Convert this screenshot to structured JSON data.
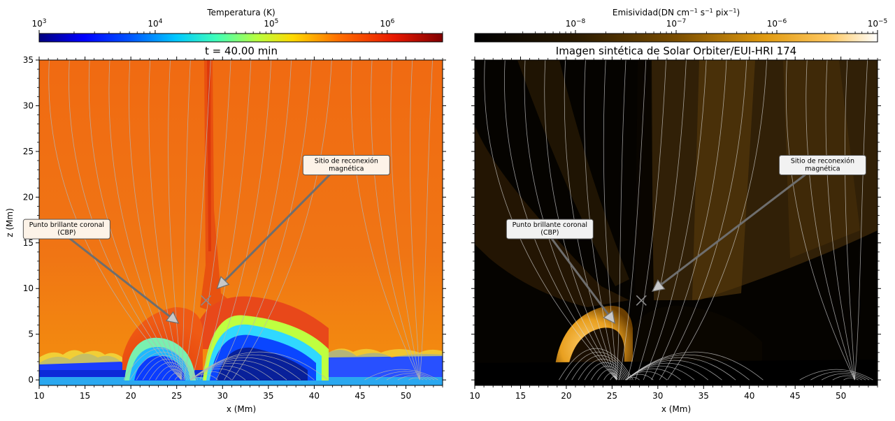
{
  "colors": {
    "arrow": "#6e6e6e",
    "field_line": "#b4b4b4",
    "x_marker": "#8a8a8a",
    "annot_box_fill": "#fdf3e8",
    "annot_box_stroke": "#555555"
  },
  "chart_data": [
    {
      "panel": "left",
      "type": "heatmap",
      "title": "t = 40.00 min",
      "xlabel": "x (Mm)",
      "ylabel": "z (Mm)",
      "xlim": [
        10,
        54
      ],
      "ylim": [
        -0.6,
        35
      ],
      "xticks": [
        10,
        15,
        20,
        25,
        30,
        35,
        40,
        45,
        50
      ],
      "yticks": [
        0,
        5,
        10,
        15,
        20,
        25,
        30,
        35
      ],
      "colorbar": {
        "label": "Temperatura (K)",
        "scale": "log",
        "colormap": "jet",
        "range": [
          1000,
          3000000
        ],
        "ticks": [
          {
            "base": "10",
            "exp": "3",
            "value": 1000
          },
          {
            "base": "10",
            "exp": "4",
            "value": 10000
          },
          {
            "base": "10",
            "exp": "5",
            "value": 100000
          },
          {
            "base": "10",
            "exp": "6",
            "value": 1000000
          }
        ]
      },
      "annotations": [
        {
          "lines": [
            "Sitio de reconexión",
            "magnética"
          ],
          "text_at": [
            43.5,
            23.5
          ],
          "arrow_to": [
            29.4,
            10.0
          ]
        },
        {
          "lines": [
            "Punto brillante coronal",
            "(CBP)"
          ],
          "text_at": [
            13.0,
            16.5
          ],
          "arrow_to": [
            25.2,
            6.2
          ]
        }
      ],
      "x_marker": [
        28.2,
        8.7
      ]
    },
    {
      "panel": "right",
      "type": "heatmap",
      "title": "Imagen sintética de Solar Orbiter/EUI-HRI 174",
      "xlabel": "x (Mm)",
      "ylabel": "",
      "xlim": [
        10,
        54
      ],
      "ylim": [
        -0.6,
        35
      ],
      "xticks": [
        10,
        15,
        20,
        25,
        30,
        35,
        40,
        45,
        50
      ],
      "colorbar": {
        "label_main": "Emisividad(DN cm",
        "label_exp1": "−1",
        "label_mid": " s",
        "label_exp2": "−1",
        "label_mid2": " pix",
        "label_exp3": "−1",
        "label_end": ")",
        "scale": "log",
        "colormap": "gold",
        "range": [
          1e-09,
          1e-05
        ],
        "ticks": [
          {
            "base": "10",
            "exp": "−8",
            "value": 1e-08
          },
          {
            "base": "10",
            "exp": "−7",
            "value": 1e-07
          },
          {
            "base": "10",
            "exp": "−6",
            "value": 1e-06
          },
          {
            "base": "10",
            "exp": "−5",
            "value": 1e-05
          }
        ]
      },
      "annotations": [
        {
          "lines": [
            "Sitio de reconexión",
            "magnética"
          ],
          "text_at": [
            48.0,
            23.5
          ],
          "arrow_to": [
            29.4,
            9.7
          ]
        },
        {
          "lines": [
            "Punto brillante coronal",
            "(CBP)"
          ],
          "text_at": [
            18.2,
            16.5
          ],
          "arrow_to": [
            25.3,
            6.2
          ]
        }
      ],
      "x_marker": [
        28.2,
        8.7
      ]
    }
  ]
}
